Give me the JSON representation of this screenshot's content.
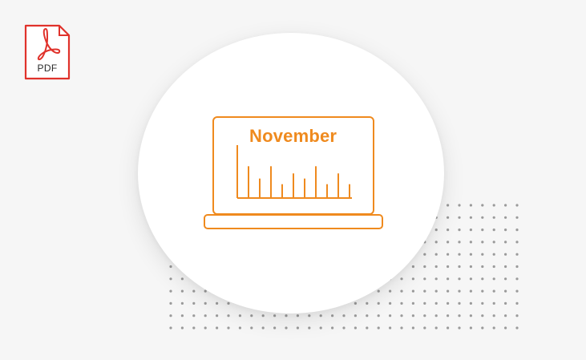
{
  "pdf_badge": {
    "label": "PDF",
    "icon": "pdf-file-icon",
    "accent_color": "#e0322b"
  },
  "illustration": {
    "icon": "laptop-chart-icon",
    "month_label": "November",
    "accent_color": "#ef8a1e",
    "bar_levels": [
      0.62,
      0.38,
      0.62,
      0.27,
      0.48,
      0.38,
      0.62,
      0.27,
      0.48,
      0.27
    ]
  },
  "decor": {
    "dot_color": "#9a9a9a"
  }
}
